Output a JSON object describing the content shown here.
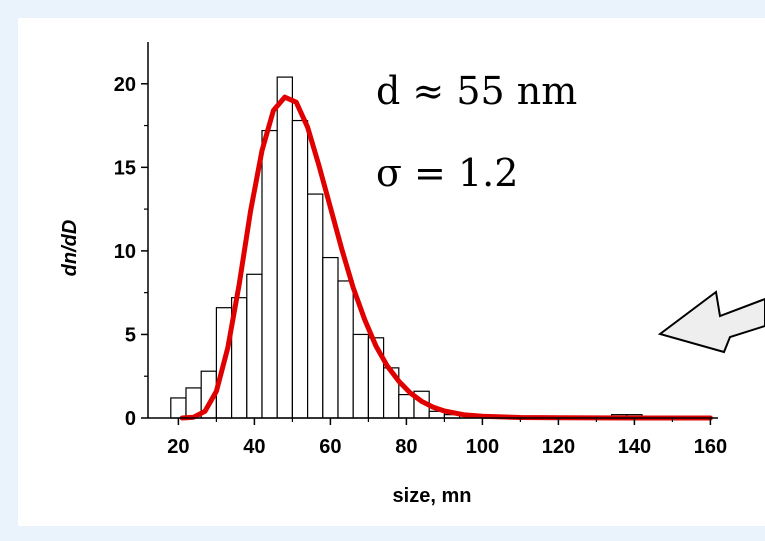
{
  "chart_data": {
    "type": "bar",
    "xlabel": "size, mn",
    "ylabel": "dn/dD",
    "xlim": [
      12,
      162
    ],
    "ylim": [
      0,
      22.5
    ],
    "xticks": [
      20,
      40,
      60,
      80,
      100,
      120,
      140,
      160
    ],
    "yticks": [
      0,
      5,
      10,
      15,
      20
    ],
    "grid": false,
    "legend": "none",
    "histogram": {
      "bin_width": 4,
      "bins": [
        {
          "center": 20,
          "value": 1.2
        },
        {
          "center": 24,
          "value": 1.8
        },
        {
          "center": 28,
          "value": 2.8
        },
        {
          "center": 32,
          "value": 6.6
        },
        {
          "center": 36,
          "value": 7.2
        },
        {
          "center": 40,
          "value": 8.6
        },
        {
          "center": 44,
          "value": 17.2
        },
        {
          "center": 48,
          "value": 20.4
        },
        {
          "center": 52,
          "value": 17.8
        },
        {
          "center": 56,
          "value": 13.4
        },
        {
          "center": 60,
          "value": 9.6
        },
        {
          "center": 64,
          "value": 8.2
        },
        {
          "center": 68,
          "value": 5.0
        },
        {
          "center": 72,
          "value": 4.8
        },
        {
          "center": 76,
          "value": 3.0
        },
        {
          "center": 80,
          "value": 1.4
        },
        {
          "center": 84,
          "value": 1.6
        },
        {
          "center": 88,
          "value": 0.4
        },
        {
          "center": 92,
          "value": 0.2
        },
        {
          "center": 96,
          "value": 0.2
        },
        {
          "center": 100,
          "value": 0.1
        },
        {
          "center": 104,
          "value": 0.1
        },
        {
          "center": 108,
          "value": 0.1
        },
        {
          "center": 112,
          "value": 0.1
        },
        {
          "center": 116,
          "value": 0.1
        },
        {
          "center": 120,
          "value": 0.1
        },
        {
          "center": 124,
          "value": 0.1
        },
        {
          "center": 128,
          "value": 0.1
        },
        {
          "center": 132,
          "value": 0.1
        },
        {
          "center": 136,
          "value": 0.2
        },
        {
          "center": 140,
          "value": 0.2
        }
      ]
    },
    "fit_curve": {
      "type": "lognormal",
      "color": "#e00000",
      "points": [
        [
          21,
          0.0
        ],
        [
          24,
          0.05
        ],
        [
          27,
          0.4
        ],
        [
          30,
          1.6
        ],
        [
          33,
          4.2
        ],
        [
          36,
          8.0
        ],
        [
          39,
          12.4
        ],
        [
          42,
          16.0
        ],
        [
          45,
          18.4
        ],
        [
          48,
          19.2
        ],
        [
          51,
          18.9
        ],
        [
          54,
          17.4
        ],
        [
          57,
          15.1
        ],
        [
          60,
          12.6
        ],
        [
          63,
          10.1
        ],
        [
          66,
          7.8
        ],
        [
          69,
          5.9
        ],
        [
          72,
          4.3
        ],
        [
          75,
          3.1
        ],
        [
          78,
          2.2
        ],
        [
          81,
          1.5
        ],
        [
          84,
          1.0
        ],
        [
          87,
          0.65
        ],
        [
          90,
          0.42
        ],
        [
          95,
          0.2
        ],
        [
          100,
          0.1
        ],
        [
          110,
          0.03
        ],
        [
          120,
          0.01
        ],
        [
          140,
          0.0
        ],
        [
          160,
          0.0
        ]
      ]
    },
    "annotations": {
      "d": "d ≈ 55 nm",
      "sigma": "σ = 1.2"
    }
  },
  "colors": {
    "background": "#eaf3fb",
    "bar_fill": "#ffffff",
    "bar_stroke": "#000000",
    "fit_curve": "#e00000",
    "arrow_fill": "#eeeeee",
    "arrow_stroke": "#000000"
  },
  "arrow": {
    "icon": "left-arrow-icon"
  }
}
